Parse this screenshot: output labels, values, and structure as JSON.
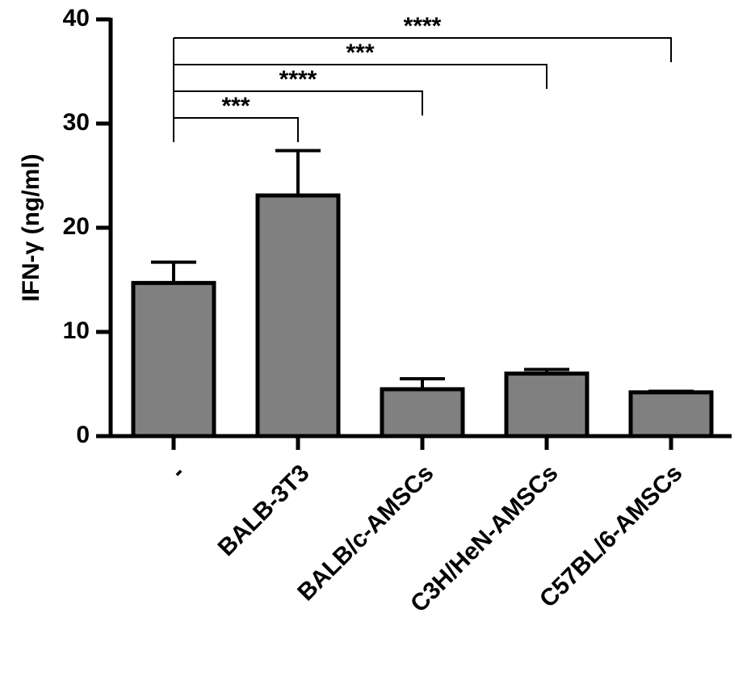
{
  "chart_data": {
    "type": "bar",
    "y_label": "IFN-γ (ng/ml)",
    "categories": [
      "-",
      "BALB-3T3",
      "BALB/c-AMSCs",
      "C3H/HeN-AMSCs",
      "C57BL/6-AMSCs"
    ],
    "values": [
      14.7,
      23.1,
      4.5,
      6.0,
      4.2
    ],
    "errors": [
      2.0,
      4.3,
      1.0,
      0.4,
      0.1
    ],
    "significance": [
      null,
      "***",
      "****",
      "***",
      "****"
    ],
    "color": "#808080",
    "ylim": [
      0,
      40
    ],
    "yticks": [
      0,
      10,
      20,
      30,
      40
    ]
  }
}
